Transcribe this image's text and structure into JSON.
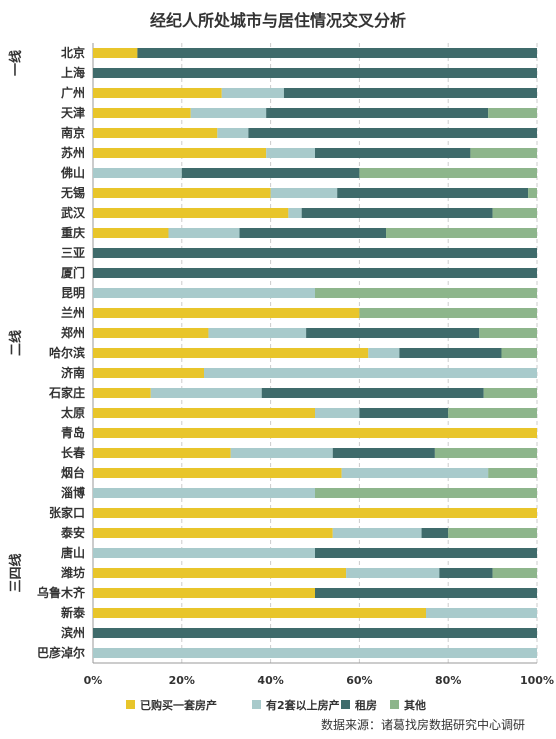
{
  "chart_data": {
    "type": "bar",
    "orientation": "horizontal",
    "stacked": true,
    "title": "经纪人所处城市与居住情况交叉分析",
    "source": "数据来源：诸葛找房数据研究中心调研",
    "xlim": [
      0,
      100
    ],
    "x_ticks": [
      "0%",
      "20%",
      "40%",
      "60%",
      "80%",
      "100%"
    ],
    "grid": true,
    "legend_position": "bottom",
    "groups": [
      {
        "label": "一线",
        "start": 0,
        "end": 1
      },
      {
        "label": "二线",
        "start": 2,
        "end": 27
      },
      {
        "label": "三四线",
        "start": 22,
        "end": 30
      }
    ],
    "categories": [
      "北京",
      "上海",
      "广州",
      "天津",
      "南京",
      "苏州",
      "佛山",
      "无锡",
      "武汉",
      "重庆",
      "三亚",
      "厦门",
      "昆明",
      "兰州",
      "郑州",
      "哈尔滨",
      "济南",
      "石家庄",
      "太原",
      "青岛",
      "长春",
      "烟台",
      "淄博",
      "张家口",
      "泰安",
      "唐山",
      "潍坊",
      "乌鲁木齐",
      "新泰",
      "滨州",
      "巴彦淖尔"
    ],
    "series": [
      {
        "name": "已购买一套房产",
        "color": "#e8c52b",
        "values": [
          10,
          0,
          29,
          22,
          28,
          39,
          0,
          40,
          44,
          17,
          0,
          0,
          0,
          60,
          26,
          62,
          25,
          13,
          50,
          100,
          31,
          56,
          0,
          100,
          54,
          0,
          57,
          50,
          75,
          0,
          0
        ]
      },
      {
        "name": "有2套以上房产",
        "color": "#a8cacb",
        "values": [
          0,
          0,
          14,
          17,
          7,
          11,
          20,
          15,
          3,
          16,
          0,
          0,
          50,
          0,
          22,
          7,
          75,
          25,
          10,
          0,
          23,
          33,
          50,
          0,
          20,
          50,
          21,
          0,
          25,
          0,
          100
        ]
      },
      {
        "name": "租房",
        "color": "#3f6b6b",
        "values": [
          90,
          100,
          57,
          50,
          65,
          35,
          40,
          43,
          43,
          33,
          100,
          100,
          0,
          0,
          39,
          23,
          0,
          50,
          20,
          0,
          23,
          0,
          0,
          0,
          6,
          50,
          12,
          50,
          0,
          100,
          0
        ]
      },
      {
        "name": "其他",
        "color": "#8db58b",
        "values": [
          0,
          0,
          0,
          11,
          0,
          15,
          40,
          2,
          10,
          34,
          0,
          0,
          50,
          40,
          13,
          8,
          0,
          12,
          20,
          0,
          23,
          11,
          50,
          0,
          20,
          0,
          10,
          0,
          0,
          0,
          0
        ]
      }
    ]
  }
}
